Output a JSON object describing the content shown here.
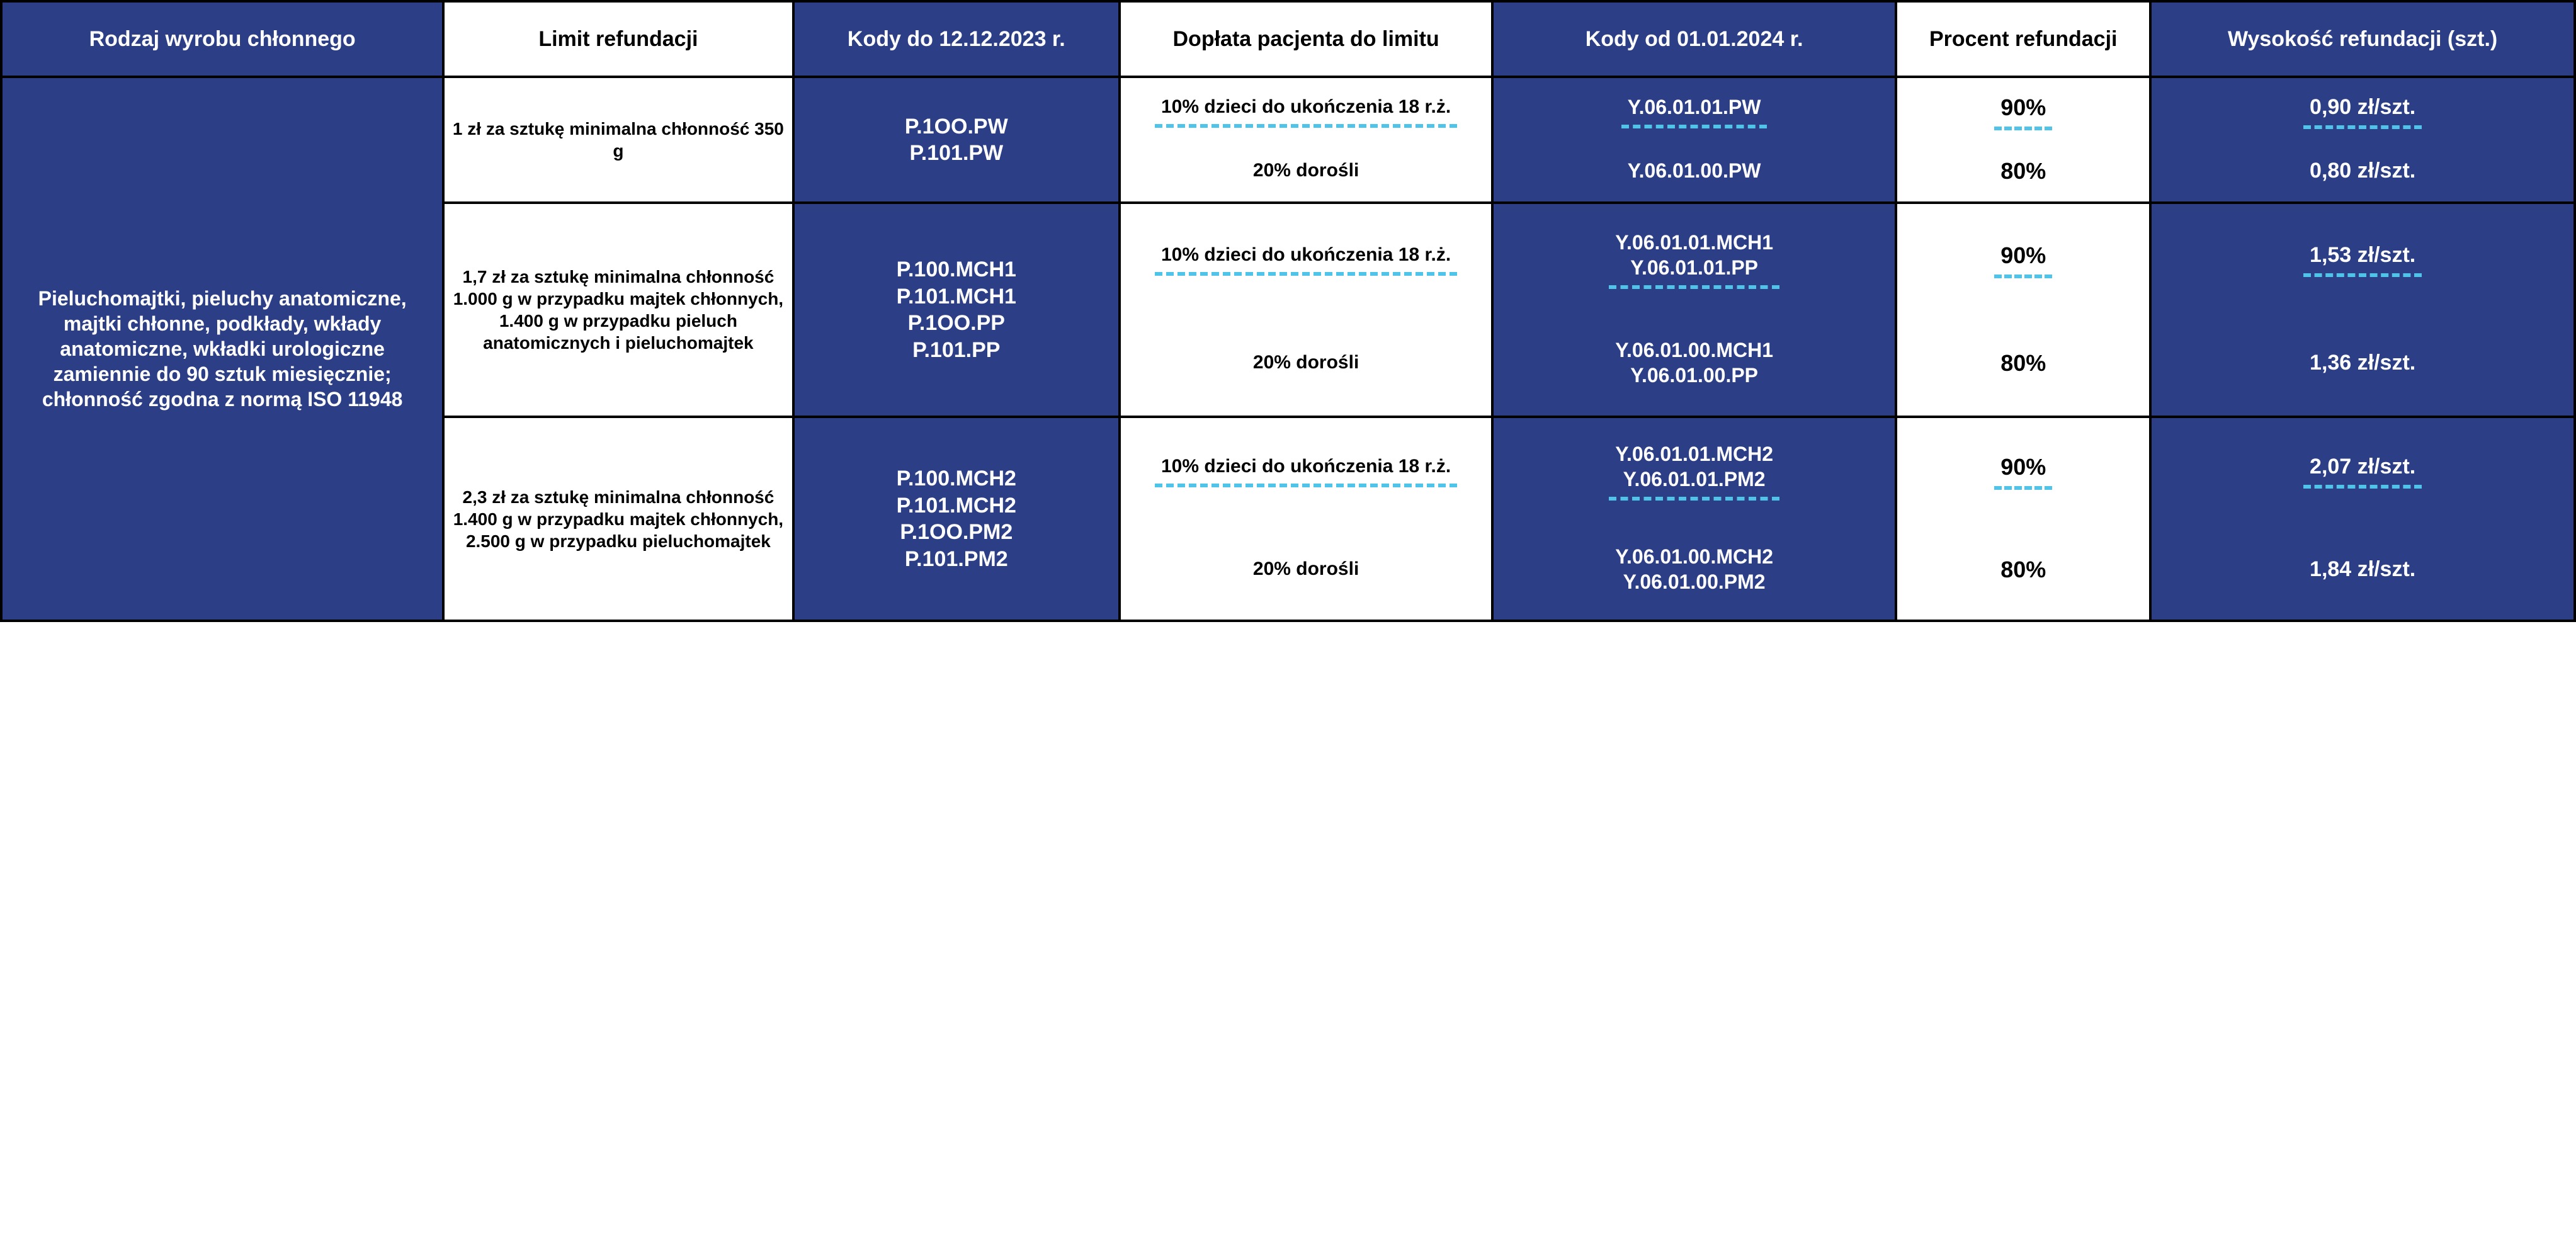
{
  "colors": {
    "blue_bg": "#2c3e86",
    "white_bg": "#ffffff",
    "black_fg": "#000000",
    "white_fg": "#ffffff",
    "border": "#000000",
    "dash": "#4fc3e8"
  },
  "headers": {
    "c1": "Rodzaj wyrobu chłonnego",
    "c2": "Limit refundacji",
    "c3": "Kody do 12.12.2023 r.",
    "c4": "Dopłata pacjenta do limitu",
    "c5": "Kody od 01.01.2024 r.",
    "c6": "Procent refundacji",
    "c7": "Wysokość refundacji (szt.)"
  },
  "rowheader": "Pieluchomajtki, pieluchy anatomiczne, majtki chłonne, podkłady, wkłady anatomiczne, wkładki urologiczne zamiennie do 90 sztuk miesięcznie; chłonność zgodna z normą ISO 11948",
  "g1": {
    "limit": "1 zł za sztukę minimalna chłonność 350 g",
    "codes_old_1": "P.1OO.PW",
    "codes_old_2": "P.101.PW",
    "pay_child": "10% dzieci do ukończenia 18 r.ż.",
    "pay_adult": "20% dorośli",
    "code_new_child": "Y.06.01.01.PW",
    "code_new_adult": "Y.06.01.00.PW",
    "pct_child": "90%",
    "pct_adult": "80%",
    "amt_child": "0,90 zł/szt.",
    "amt_adult": "0,80 zł/szt."
  },
  "g2": {
    "limit": "1,7 zł za sztukę minimalna chłonność 1.000 g w przypadku majtek chłonnych, 1.400 g w przypadku pieluch anatomicznych i pieluchomajtek",
    "codes_old_1": "P.100.MCH1",
    "codes_old_2": "P.101.MCH1",
    "codes_old_3": "P.1OO.PP",
    "codes_old_4": "P.101.PP",
    "pay_child": "10% dzieci do ukończenia 18 r.ż.",
    "pay_adult": "20% dorośli",
    "code_new_child_1": "Y.06.01.01.MCH1",
    "code_new_child_2": "Y.06.01.01.PP",
    "code_new_adult_1": "Y.06.01.00.MCH1",
    "code_new_adult_2": "Y.06.01.00.PP",
    "pct_child": "90%",
    "pct_adult": "80%",
    "amt_child": "1,53 zł/szt.",
    "amt_adult": "1,36 zł/szt."
  },
  "g3": {
    "limit": "2,3 zł za sztukę minimalna chłonność 1.400 g w przypadku majtek chłonnych, 2.500 g w przypadku pieluchomajtek",
    "codes_old_1": "P.100.MCH2",
    "codes_old_2": "P.101.MCH2",
    "codes_old_3": "P.1OO.PM2",
    "codes_old_4": "P.101.PM2",
    "pay_child": "10% dzieci do ukończenia 18 r.ż.",
    "pay_adult": "20% dorośli",
    "code_new_child_1": "Y.06.01.01.MCH2",
    "code_new_child_2": "Y.06.01.01.PM2",
    "code_new_adult_1": "Y.06.01.00.MCH2",
    "code_new_adult_2": "Y.06.01.00.PM2",
    "pct_child": "90%",
    "pct_adult": "80%",
    "amt_child": "2,07 zł/szt.",
    "amt_adult": "1,84 zł/szt."
  }
}
